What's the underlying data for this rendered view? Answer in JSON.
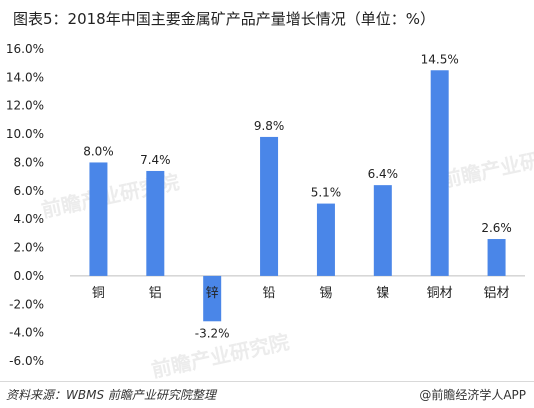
{
  "title": "图表5：2018年中国主要金属矿产品产量增长情况（单位：%）",
  "footer": {
    "source": "资料来源：WBMS 前瞻产业研究院整理",
    "brand": "@前瞻经济学人APP"
  },
  "watermark": "前瞻产业研究院",
  "colors": {
    "bar": "#4A86E8",
    "axis": "#bfbfbf",
    "text": "#222222"
  },
  "chart_data": {
    "type": "bar",
    "title": "图表5：2018年中国主要金属矿产品产量增长情况（单位：%）",
    "categories": [
      "铜",
      "铝",
      "锌",
      "铅",
      "锡",
      "镍",
      "铜材",
      "铝材"
    ],
    "values": [
      8.0,
      7.4,
      -3.2,
      9.8,
      5.1,
      6.4,
      14.5,
      2.6
    ],
    "value_labels": [
      "8.0%",
      "7.4%",
      "-3.2%",
      "9.8%",
      "5.1%",
      "6.4%",
      "14.5%",
      "2.6%"
    ],
    "y_ticks": [
      "-6.0%",
      "-4.0%",
      "-2.0%",
      "0.0%",
      "2.0%",
      "4.0%",
      "6.0%",
      "8.0%",
      "10.0%",
      "12.0%",
      "14.0%",
      "16.0%"
    ],
    "ylim": [
      -6,
      16
    ],
    "grid": false,
    "legend": "none"
  }
}
